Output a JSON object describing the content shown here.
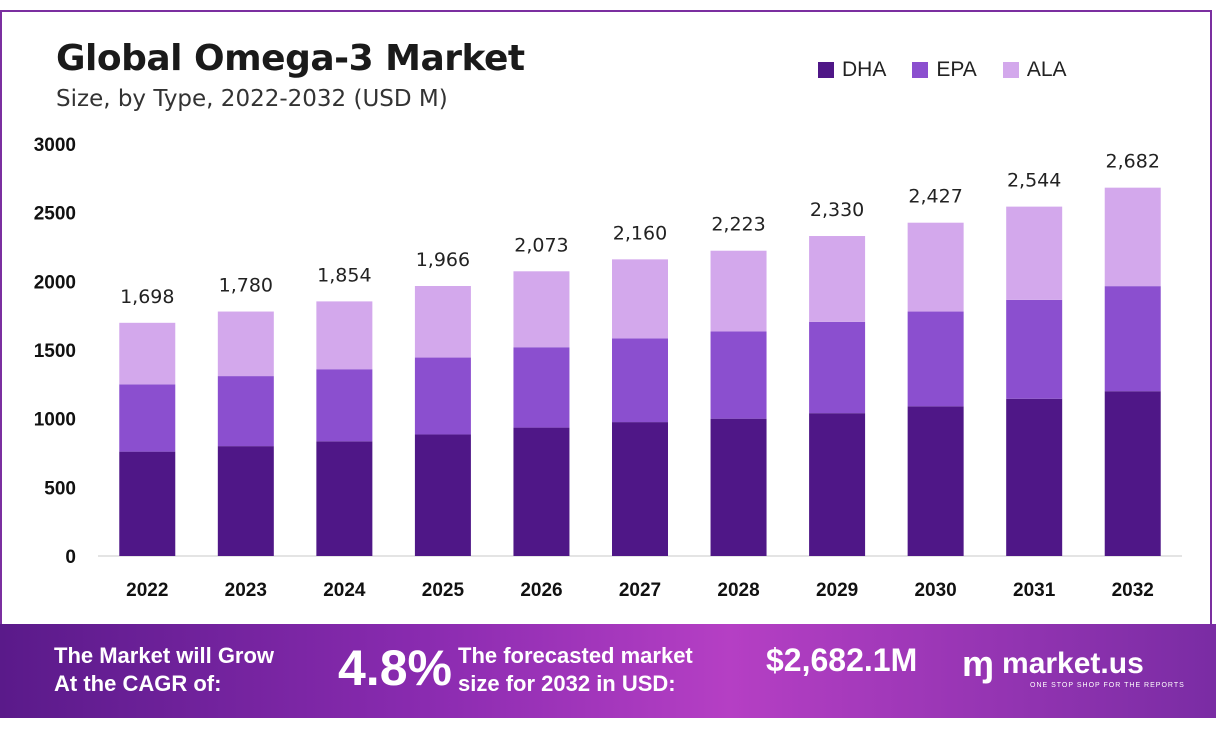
{
  "header": {
    "title": "Global Omega-3 Market",
    "subtitle": "Size, by Type, 2022-2032 (USD M)"
  },
  "legend": [
    {
      "label": "DHA",
      "color": "#4f1787"
    },
    {
      "label": "EPA",
      "color": "#8b4fcf"
    },
    {
      "label": "ALA",
      "color": "#d3a8ec"
    }
  ],
  "chart_data": {
    "type": "bar",
    "stacked": true,
    "categories": [
      "2022",
      "2023",
      "2024",
      "2025",
      "2026",
      "2027",
      "2028",
      "2029",
      "2030",
      "2031",
      "2032"
    ],
    "series": [
      {
        "name": "DHA",
        "color": "#4f1787",
        "values": [
          760,
          800,
          835,
          885,
          935,
          975,
          1000,
          1040,
          1090,
          1145,
          1200
        ]
      },
      {
        "name": "EPA",
        "color": "#8b4fcf",
        "values": [
          490,
          510,
          525,
          560,
          585,
          610,
          635,
          665,
          690,
          720,
          765
        ]
      },
      {
        "name": "ALA",
        "color": "#d3a8ec",
        "values": [
          448,
          470,
          494,
          521,
          553,
          575,
          588,
          625,
          647,
          679,
          717
        ]
      }
    ],
    "totals": [
      "1,698",
      "1,780",
      "1,854",
      "1,966",
      "2,073",
      "2,160",
      "2,223",
      "2,330",
      "2,427",
      "2,544",
      "2,682"
    ],
    "yticks": [
      0,
      500,
      1000,
      1500,
      2000,
      2500,
      3000
    ],
    "ylim": [
      0,
      3000
    ],
    "grid": false,
    "legend_position": "top-right"
  },
  "banner": {
    "cagr_label_1": "The Market will Grow",
    "cagr_label_2": "At the CAGR of:",
    "cagr_value": "4.8%",
    "forecast_label_1": "The forecasted market",
    "forecast_label_2": "size for 2032 in USD:",
    "forecast_value": "$2,682.1M",
    "logo_mark": "ɱ",
    "brand": "market.us",
    "tagline": "ONE STOP SHOP FOR THE REPORTS"
  }
}
